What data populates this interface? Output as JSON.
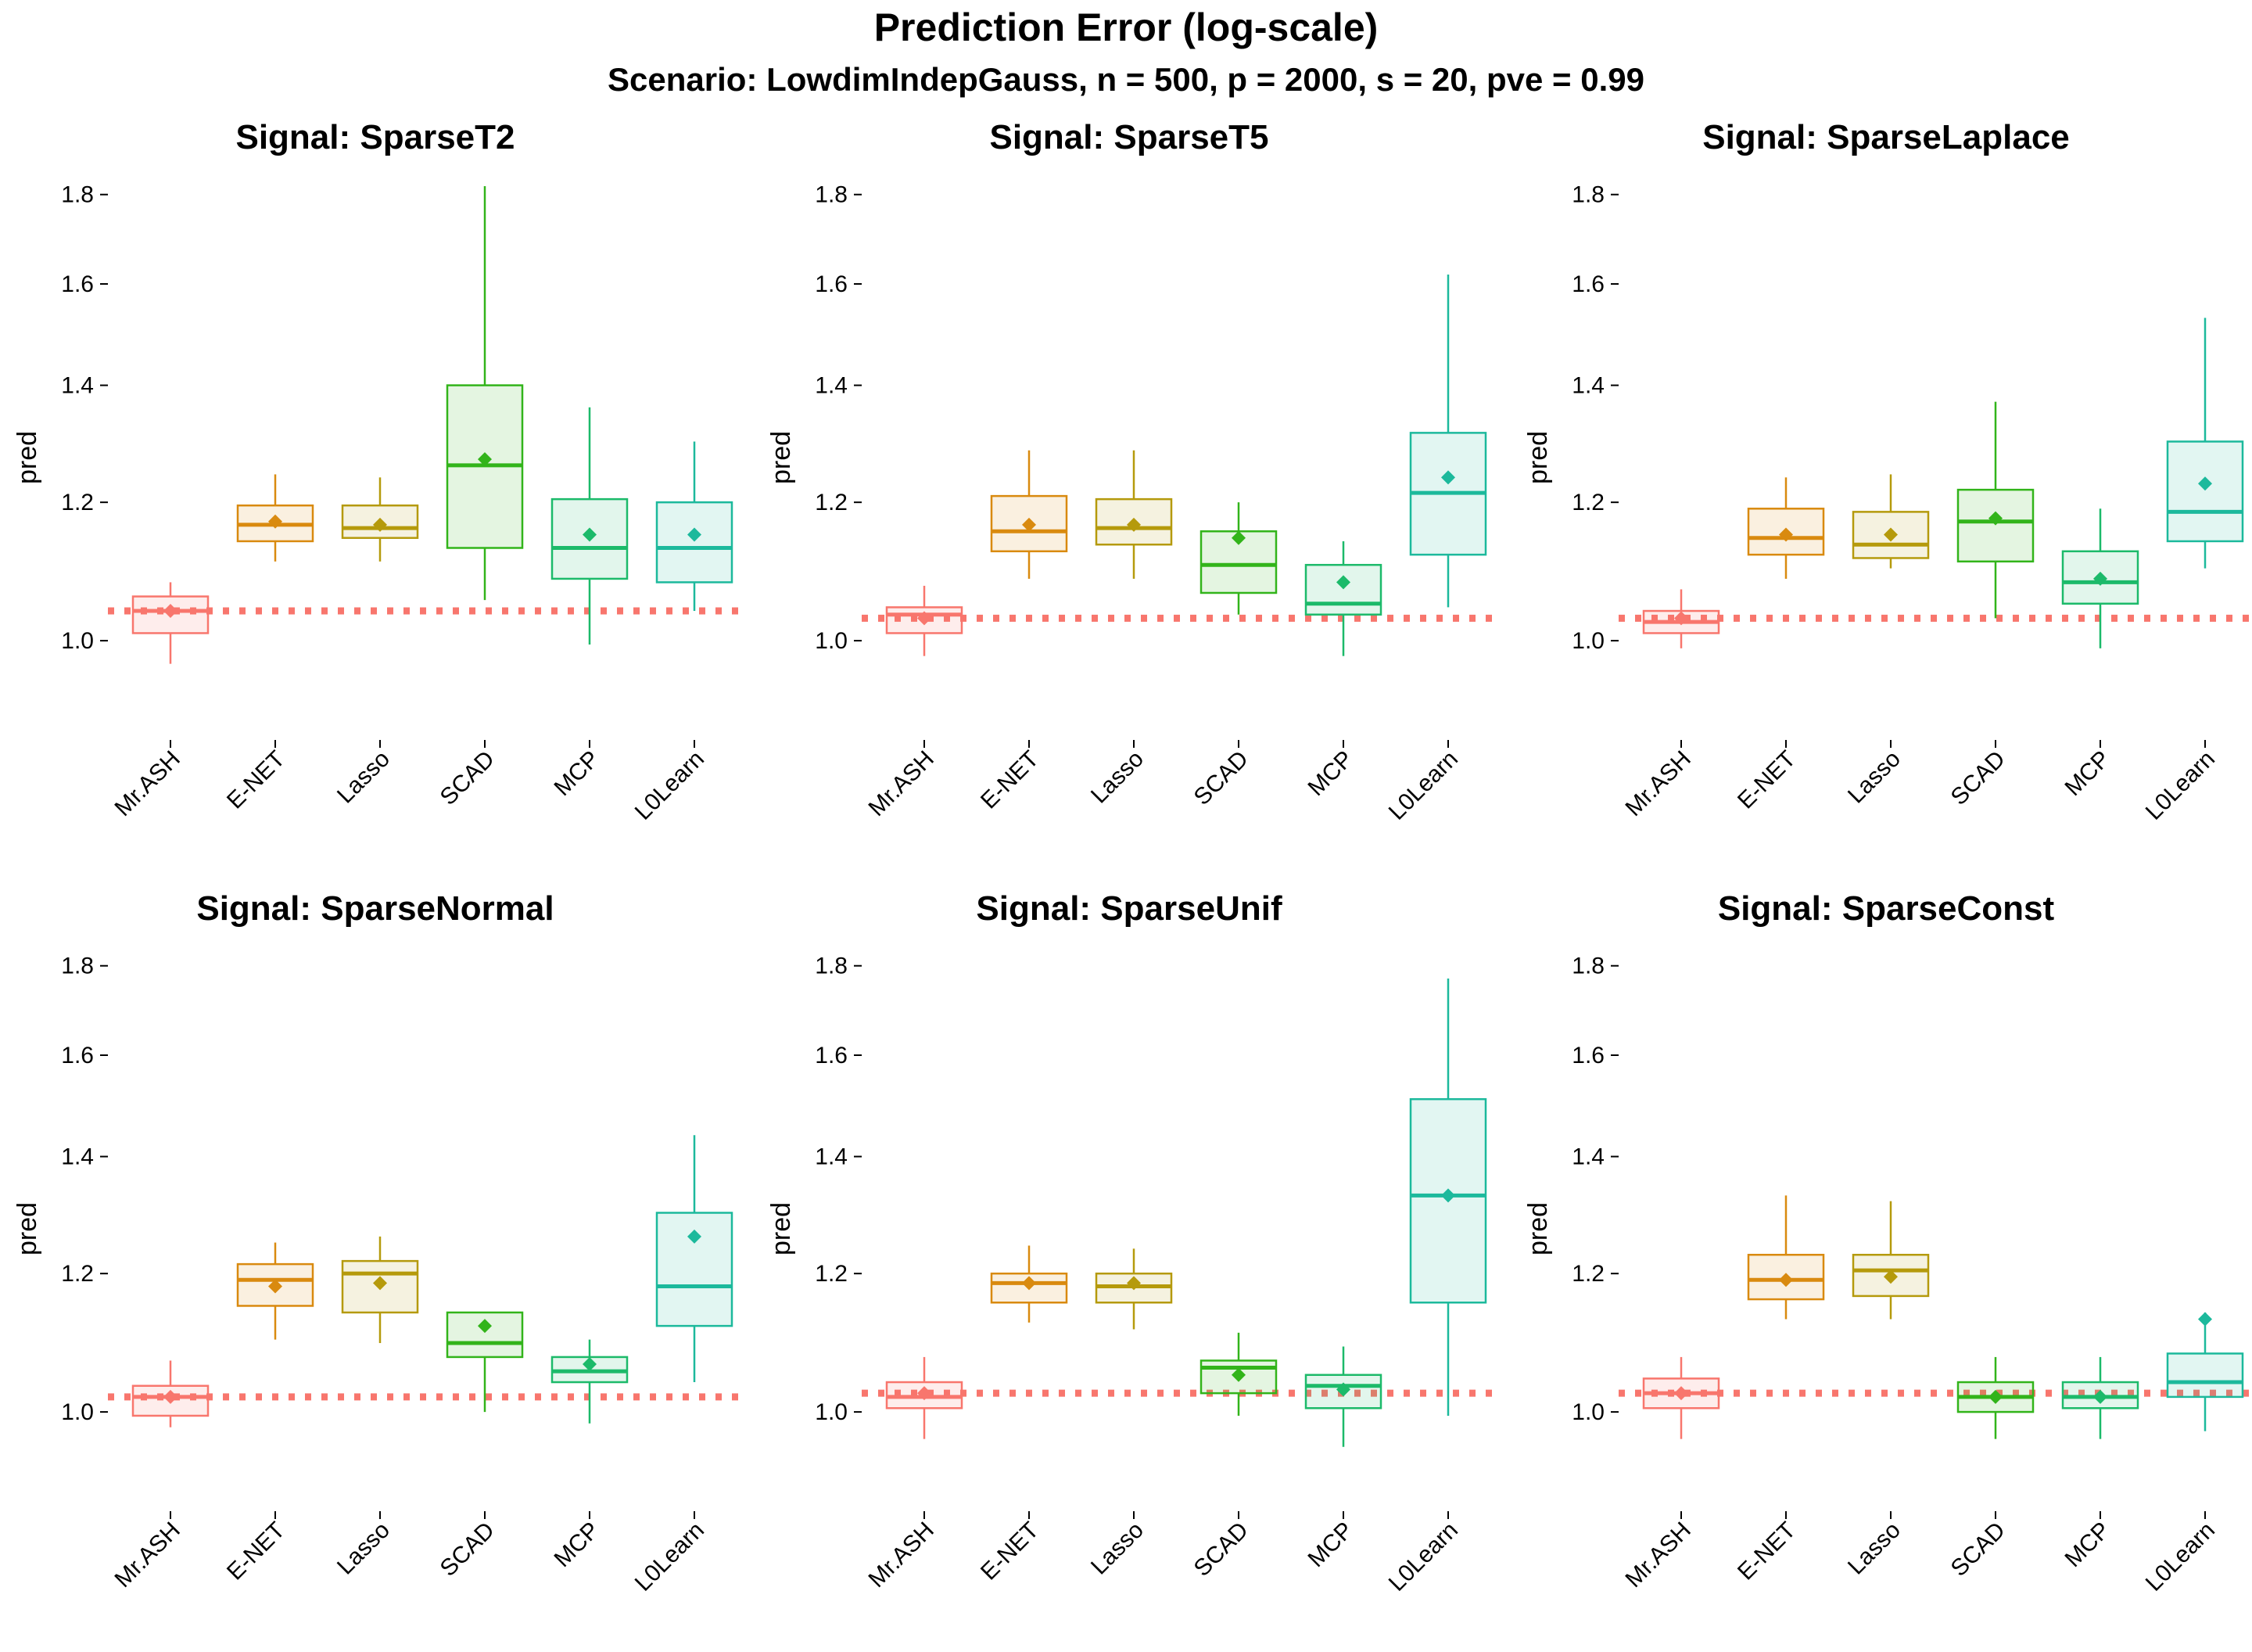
{
  "title": "Prediction Error (log-scale)",
  "subtitle": "Scenario: LowdimIndepGauss, n = 500, p = 2000, s = 20, pve = 0.99",
  "chart_data": {
    "type": "box",
    "ylabel": "pred",
    "yticks": [
      1.0,
      1.2,
      1.4,
      1.6,
      1.8
    ],
    "ytick_labels": [
      "1.0",
      "1.2",
      "1.4",
      "1.6",
      "1.8"
    ],
    "ylim": [
      0.92,
      1.82
    ],
    "y_scale": "log",
    "categories": [
      "Mr.ASH",
      "E-NET",
      "Lasso",
      "SCAD",
      "MCP",
      "L0Learn"
    ],
    "colors": [
      "#f8766d",
      "#d98a0f",
      "#b59a0c",
      "#32b41a",
      "#1cba6a",
      "#1cb99c"
    ],
    "reference_line": {
      "style": "dotted",
      "color": "#f8766d"
    },
    "panels": [
      {
        "title": "Signal: SparseT2",
        "reference": 1.04,
        "boxes": [
          {
            "low": 0.97,
            "q1": 1.01,
            "median": 1.04,
            "q3": 1.06,
            "high": 1.08,
            "mean": 1.04
          },
          {
            "low": 1.11,
            "q1": 1.14,
            "median": 1.165,
            "q3": 1.195,
            "high": 1.245,
            "mean": 1.17
          },
          {
            "low": 1.11,
            "q1": 1.145,
            "median": 1.16,
            "q3": 1.195,
            "high": 1.24,
            "mean": 1.165
          },
          {
            "low": 1.055,
            "q1": 1.13,
            "median": 1.26,
            "q3": 1.4,
            "high": 1.82,
            "mean": 1.27
          },
          {
            "low": 0.995,
            "q1": 1.085,
            "median": 1.13,
            "q3": 1.205,
            "high": 1.36,
            "mean": 1.15
          },
          {
            "low": 1.04,
            "q1": 1.08,
            "median": 1.13,
            "q3": 1.2,
            "high": 1.3,
            "mean": 1.15
          }
        ]
      },
      {
        "title": "Signal: SparseT5",
        "reference": 1.03,
        "boxes": [
          {
            "low": 0.98,
            "q1": 1.01,
            "median": 1.035,
            "q3": 1.045,
            "high": 1.075,
            "mean": 1.03
          },
          {
            "low": 1.085,
            "q1": 1.125,
            "median": 1.155,
            "q3": 1.21,
            "high": 1.285,
            "mean": 1.165
          },
          {
            "low": 1.085,
            "q1": 1.135,
            "median": 1.16,
            "q3": 1.205,
            "high": 1.285,
            "mean": 1.165
          },
          {
            "low": 1.035,
            "q1": 1.065,
            "median": 1.105,
            "q3": 1.155,
            "high": 1.2,
            "mean": 1.145
          },
          {
            "low": 0.98,
            "q1": 1.035,
            "median": 1.05,
            "q3": 1.105,
            "high": 1.14,
            "mean": 1.08
          },
          {
            "low": 1.045,
            "q1": 1.12,
            "median": 1.215,
            "q3": 1.315,
            "high": 1.62,
            "mean": 1.24
          }
        ]
      },
      {
        "title": "Signal: SparseLaplace",
        "reference": 1.03,
        "boxes": [
          {
            "low": 0.99,
            "q1": 1.01,
            "median": 1.025,
            "q3": 1.04,
            "high": 1.07,
            "mean": 1.03
          },
          {
            "low": 1.085,
            "q1": 1.12,
            "median": 1.145,
            "q3": 1.19,
            "high": 1.24,
            "mean": 1.15
          },
          {
            "low": 1.1,
            "q1": 1.115,
            "median": 1.135,
            "q3": 1.185,
            "high": 1.245,
            "mean": 1.15
          },
          {
            "low": 1.03,
            "q1": 1.11,
            "median": 1.17,
            "q3": 1.22,
            "high": 1.37,
            "mean": 1.175
          },
          {
            "low": 0.99,
            "q1": 1.05,
            "median": 1.08,
            "q3": 1.125,
            "high": 1.19,
            "mean": 1.085
          },
          {
            "low": 1.1,
            "q1": 1.14,
            "median": 1.185,
            "q3": 1.3,
            "high": 1.53,
            "mean": 1.23
          }
        ]
      },
      {
        "title": "Signal: SparseNormal",
        "reference": 1.02,
        "boxes": [
          {
            "low": 0.98,
            "q1": 0.995,
            "median": 1.02,
            "q3": 1.035,
            "high": 1.07,
            "mean": 1.02
          },
          {
            "low": 1.1,
            "q1": 1.15,
            "median": 1.19,
            "q3": 1.215,
            "high": 1.25,
            "mean": 1.18
          },
          {
            "low": 1.095,
            "q1": 1.14,
            "median": 1.2,
            "q3": 1.22,
            "high": 1.26,
            "mean": 1.185
          },
          {
            "low": 1.0,
            "q1": 1.075,
            "median": 1.095,
            "q3": 1.14,
            "high": 1.14,
            "mean": 1.12
          },
          {
            "low": 0.985,
            "q1": 1.04,
            "median": 1.055,
            "q3": 1.075,
            "high": 1.1,
            "mean": 1.065
          },
          {
            "low": 1.04,
            "q1": 1.12,
            "median": 1.18,
            "q3": 1.3,
            "high": 1.44,
            "mean": 1.26
          }
        ]
      },
      {
        "title": "Signal: SparseUnif",
        "reference": 1.025,
        "boxes": [
          {
            "low": 0.965,
            "q1": 1.005,
            "median": 1.02,
            "q3": 1.04,
            "high": 1.075,
            "mean": 1.025
          },
          {
            "low": 1.125,
            "q1": 1.155,
            "median": 1.185,
            "q3": 1.2,
            "high": 1.245,
            "mean": 1.185
          },
          {
            "low": 1.115,
            "q1": 1.155,
            "median": 1.18,
            "q3": 1.2,
            "high": 1.24,
            "mean": 1.185
          },
          {
            "low": 0.995,
            "q1": 1.025,
            "median": 1.06,
            "q3": 1.07,
            "high": 1.11,
            "mean": 1.05
          },
          {
            "low": 0.955,
            "q1": 1.005,
            "median": 1.035,
            "q3": 1.05,
            "high": 1.09,
            "mean": 1.03
          },
          {
            "low": 0.995,
            "q1": 1.155,
            "median": 1.33,
            "q3": 1.51,
            "high": 1.77,
            "mean": 1.33
          }
        ]
      },
      {
        "title": "Signal: SparseConst",
        "reference": 1.025,
        "boxes": [
          {
            "low": 0.965,
            "q1": 1.005,
            "median": 1.025,
            "q3": 1.045,
            "high": 1.075,
            "mean": 1.025
          },
          {
            "low": 1.13,
            "q1": 1.16,
            "median": 1.19,
            "q3": 1.23,
            "high": 1.33,
            "mean": 1.19
          },
          {
            "low": 1.13,
            "q1": 1.165,
            "median": 1.205,
            "q3": 1.23,
            "high": 1.32,
            "mean": 1.195
          },
          {
            "low": 0.965,
            "q1": 1.0,
            "median": 1.02,
            "q3": 1.04,
            "high": 1.075,
            "mean": 1.02
          },
          {
            "low": 0.965,
            "q1": 1.005,
            "median": 1.02,
            "q3": 1.04,
            "high": 1.075,
            "mean": 1.02
          },
          {
            "low": 0.975,
            "q1": 1.02,
            "median": 1.04,
            "q3": 1.08,
            "high": 1.14,
            "mean": 1.13
          }
        ]
      }
    ]
  }
}
